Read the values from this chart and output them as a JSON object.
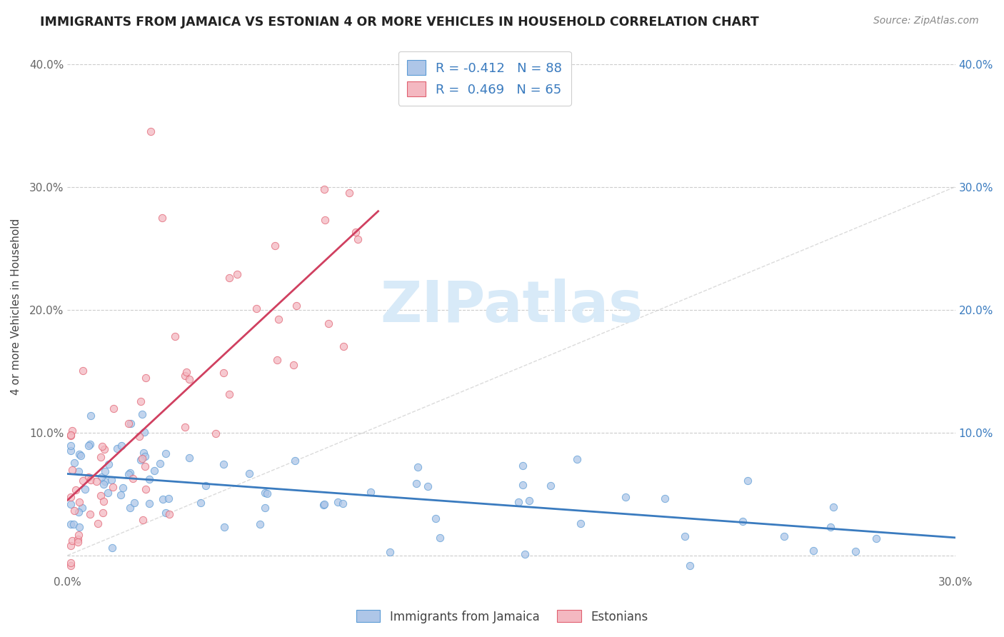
{
  "title": "IMMIGRANTS FROM JAMAICA VS ESTONIAN 4 OR MORE VEHICLES IN HOUSEHOLD CORRELATION CHART",
  "source": "Source: ZipAtlas.com",
  "ylabel": "4 or more Vehicles in Household",
  "xlim": [
    0.0,
    0.3
  ],
  "ylim": [
    -0.015,
    0.42
  ],
  "xticks": [
    0.0,
    0.05,
    0.1,
    0.15,
    0.2,
    0.25,
    0.3
  ],
  "xtick_labels": [
    "0.0%",
    "",
    "",
    "",
    "",
    "",
    "30.0%"
  ],
  "yticks_left": [
    0.0,
    0.1,
    0.2,
    0.3,
    0.4
  ],
  "ytick_labels_left": [
    "",
    "10.0%",
    "20.0%",
    "30.0%",
    "40.0%"
  ],
  "ytick_labels_right": [
    "",
    "10.0%",
    "20.0%",
    "30.0%",
    "40.0%"
  ],
  "blue_color": "#aec6e8",
  "pink_color": "#f4b8c1",
  "blue_edge_color": "#5b9bd5",
  "pink_edge_color": "#e06070",
  "blue_line_color": "#3a7bbf",
  "pink_line_color": "#d04060",
  "diagonal_color": "#cccccc",
  "watermark_color": "#d8eaf8",
  "watermark": "ZIPatlas",
  "R_blue": -0.412,
  "N_blue": 88,
  "R_pink": 0.469,
  "N_pink": 65,
  "legend_label_blue": "Immigrants from Jamaica",
  "legend_label_pink": "Estonians"
}
